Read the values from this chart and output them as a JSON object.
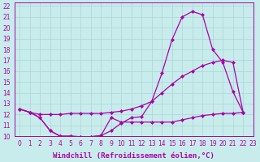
{
  "xlabel": "Windchill (Refroidissement éolien,°C)",
  "bg_color": "#c8ecec",
  "grid_color": "#b0d8d8",
  "line_color": "#aa00aa",
  "xlim": [
    -0.5,
    23
  ],
  "ylim": [
    10,
    22.3
  ],
  "xticks": [
    0,
    1,
    2,
    3,
    4,
    5,
    6,
    7,
    8,
    9,
    10,
    11,
    12,
    13,
    14,
    15,
    16,
    17,
    18,
    19,
    20,
    21,
    22,
    23
  ],
  "yticks": [
    10,
    11,
    12,
    13,
    14,
    15,
    16,
    17,
    18,
    19,
    20,
    21,
    22
  ],
  "line1_x": [
    0,
    1,
    2,
    3,
    4,
    5,
    6,
    7,
    8,
    9,
    10,
    11,
    12,
    13,
    14,
    15,
    16,
    17,
    18,
    19,
    20,
    21,
    22
  ],
  "line1_y": [
    12.5,
    12.2,
    11.7,
    10.5,
    10.0,
    10.0,
    9.95,
    9.95,
    10.05,
    10.5,
    11.2,
    11.7,
    11.8,
    13.2,
    15.8,
    18.9,
    21.0,
    21.5,
    21.2,
    18.0,
    16.8,
    14.1,
    12.2
  ],
  "line2_x": [
    0,
    1,
    2,
    3,
    4,
    5,
    6,
    7,
    8,
    9,
    10,
    11,
    12,
    13,
    14,
    15,
    16,
    17,
    18,
    19,
    20,
    21,
    22
  ],
  "line2_y": [
    12.5,
    12.2,
    12.0,
    12.0,
    12.0,
    12.1,
    12.1,
    12.1,
    12.1,
    12.2,
    12.3,
    12.5,
    12.8,
    13.2,
    14.0,
    14.8,
    15.5,
    16.0,
    16.5,
    16.8,
    17.0,
    16.8,
    12.2
  ],
  "line3_x": [
    0,
    1,
    2,
    3,
    4,
    5,
    6,
    7,
    8,
    9,
    10,
    11,
    12,
    13,
    14,
    15,
    16,
    17,
    18,
    19,
    20,
    21,
    22
  ],
  "line3_y": [
    12.5,
    12.2,
    11.7,
    10.5,
    10.0,
    10.0,
    9.95,
    9.95,
    10.05,
    11.7,
    11.3,
    11.3,
    11.3,
    11.3,
    11.3,
    11.3,
    11.5,
    11.7,
    11.9,
    12.0,
    12.1,
    12.1,
    12.2
  ],
  "marker": "D",
  "markersize": 2.0,
  "linewidth": 0.9,
  "xlabel_fontsize": 6.5,
  "tick_fontsize": 5.5
}
